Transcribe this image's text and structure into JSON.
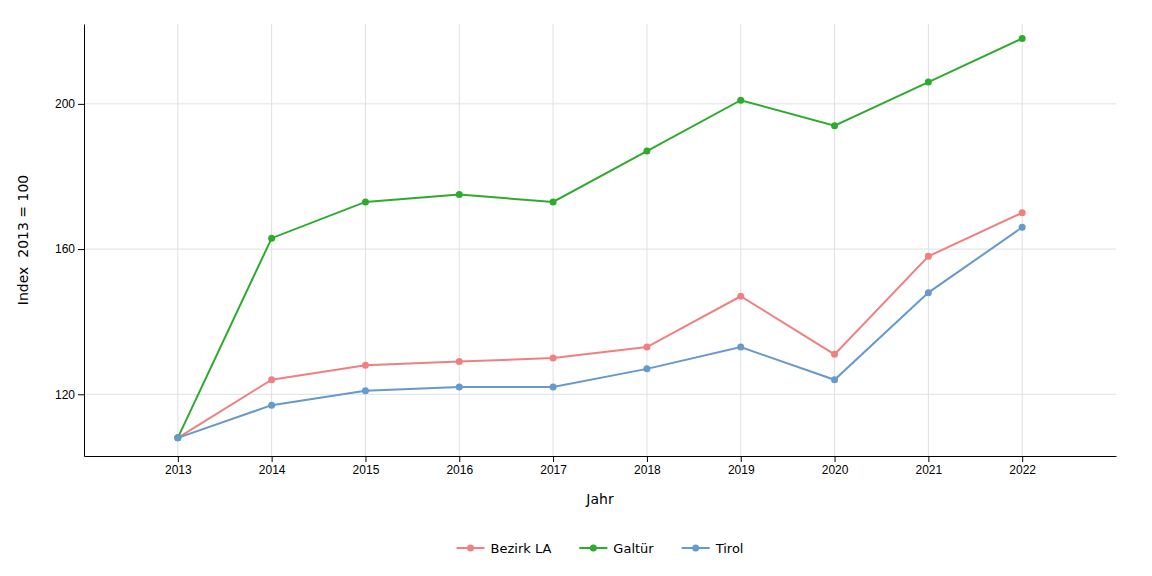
{
  "chart_data": {
    "type": "line",
    "x": [
      2013,
      2014,
      2015,
      2016,
      2017,
      2018,
      2019,
      2020,
      2021,
      2022
    ],
    "series": [
      {
        "name": "Bezirk LA",
        "color": "#F08080",
        "marker": "circle",
        "values": [
          108,
          124,
          128,
          129,
          130,
          133,
          147,
          131,
          158,
          170
        ]
      },
      {
        "name": "Galtür",
        "color": "#2EAA2E",
        "marker": "circle",
        "values": [
          108,
          163,
          173,
          175,
          173,
          187,
          201,
          194,
          206,
          218
        ]
      },
      {
        "name": "Tirol",
        "color": "#6699CC",
        "marker": "circle",
        "values": [
          108,
          117,
          121,
          122,
          122,
          127,
          133,
          124,
          148,
          166
        ]
      }
    ],
    "xlabel": "Jahr",
    "ylabel": "Index  2013 = 100",
    "xlim": [
      2012,
      2023
    ],
    "xticks": [
      2013,
      2014,
      2015,
      2016,
      2017,
      2018,
      2019,
      2020,
      2021,
      2022
    ],
    "ylim": [
      103,
      222
    ],
    "yticks": [
      120,
      160,
      200
    ],
    "grid": true,
    "legend": "bottom"
  }
}
